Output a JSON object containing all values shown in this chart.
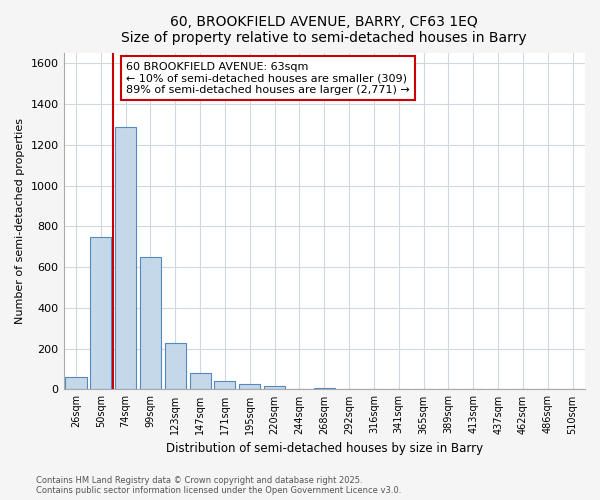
{
  "title_line1": "60, BROOKFIELD AVENUE, BARRY, CF63 1EQ",
  "title_line2": "Size of property relative to semi-detached houses in Barry",
  "xlabel": "Distribution of semi-detached houses by size in Barry",
  "ylabel": "Number of semi-detached properties",
  "categories": [
    "26sqm",
    "50sqm",
    "74sqm",
    "99sqm",
    "123sqm",
    "147sqm",
    "171sqm",
    "195sqm",
    "220sqm",
    "244sqm",
    "268sqm",
    "292sqm",
    "316sqm",
    "341sqm",
    "365sqm",
    "389sqm",
    "413sqm",
    "437sqm",
    "462sqm",
    "486sqm",
    "510sqm"
  ],
  "values": [
    60,
    750,
    1290,
    650,
    230,
    80,
    40,
    25,
    15,
    0,
    5,
    0,
    0,
    0,
    0,
    0,
    0,
    0,
    0,
    0,
    0
  ],
  "bar_color": "#c5d8ea",
  "bar_edge_color": "#5588bb",
  "vline_x": 1.5,
  "vline_color": "#cc0000",
  "annotation_title": "60 BROOKFIELD AVENUE: 63sqm",
  "annotation_line1": "← 10% of semi-detached houses are smaller (309)",
  "annotation_line2": "89% of semi-detached houses are larger (2,771) →",
  "annotation_box_edge": "#cc0000",
  "ylim": [
    0,
    1650
  ],
  "yticks": [
    0,
    200,
    400,
    600,
    800,
    1000,
    1200,
    1400,
    1600
  ],
  "background_color": "#f5f5f5",
  "plot_bg_color": "#ffffff",
  "grid_color": "#d0d8e0",
  "footer_line1": "Contains HM Land Registry data © Crown copyright and database right 2025.",
  "footer_line2": "Contains public sector information licensed under the Open Government Licence v3.0."
}
